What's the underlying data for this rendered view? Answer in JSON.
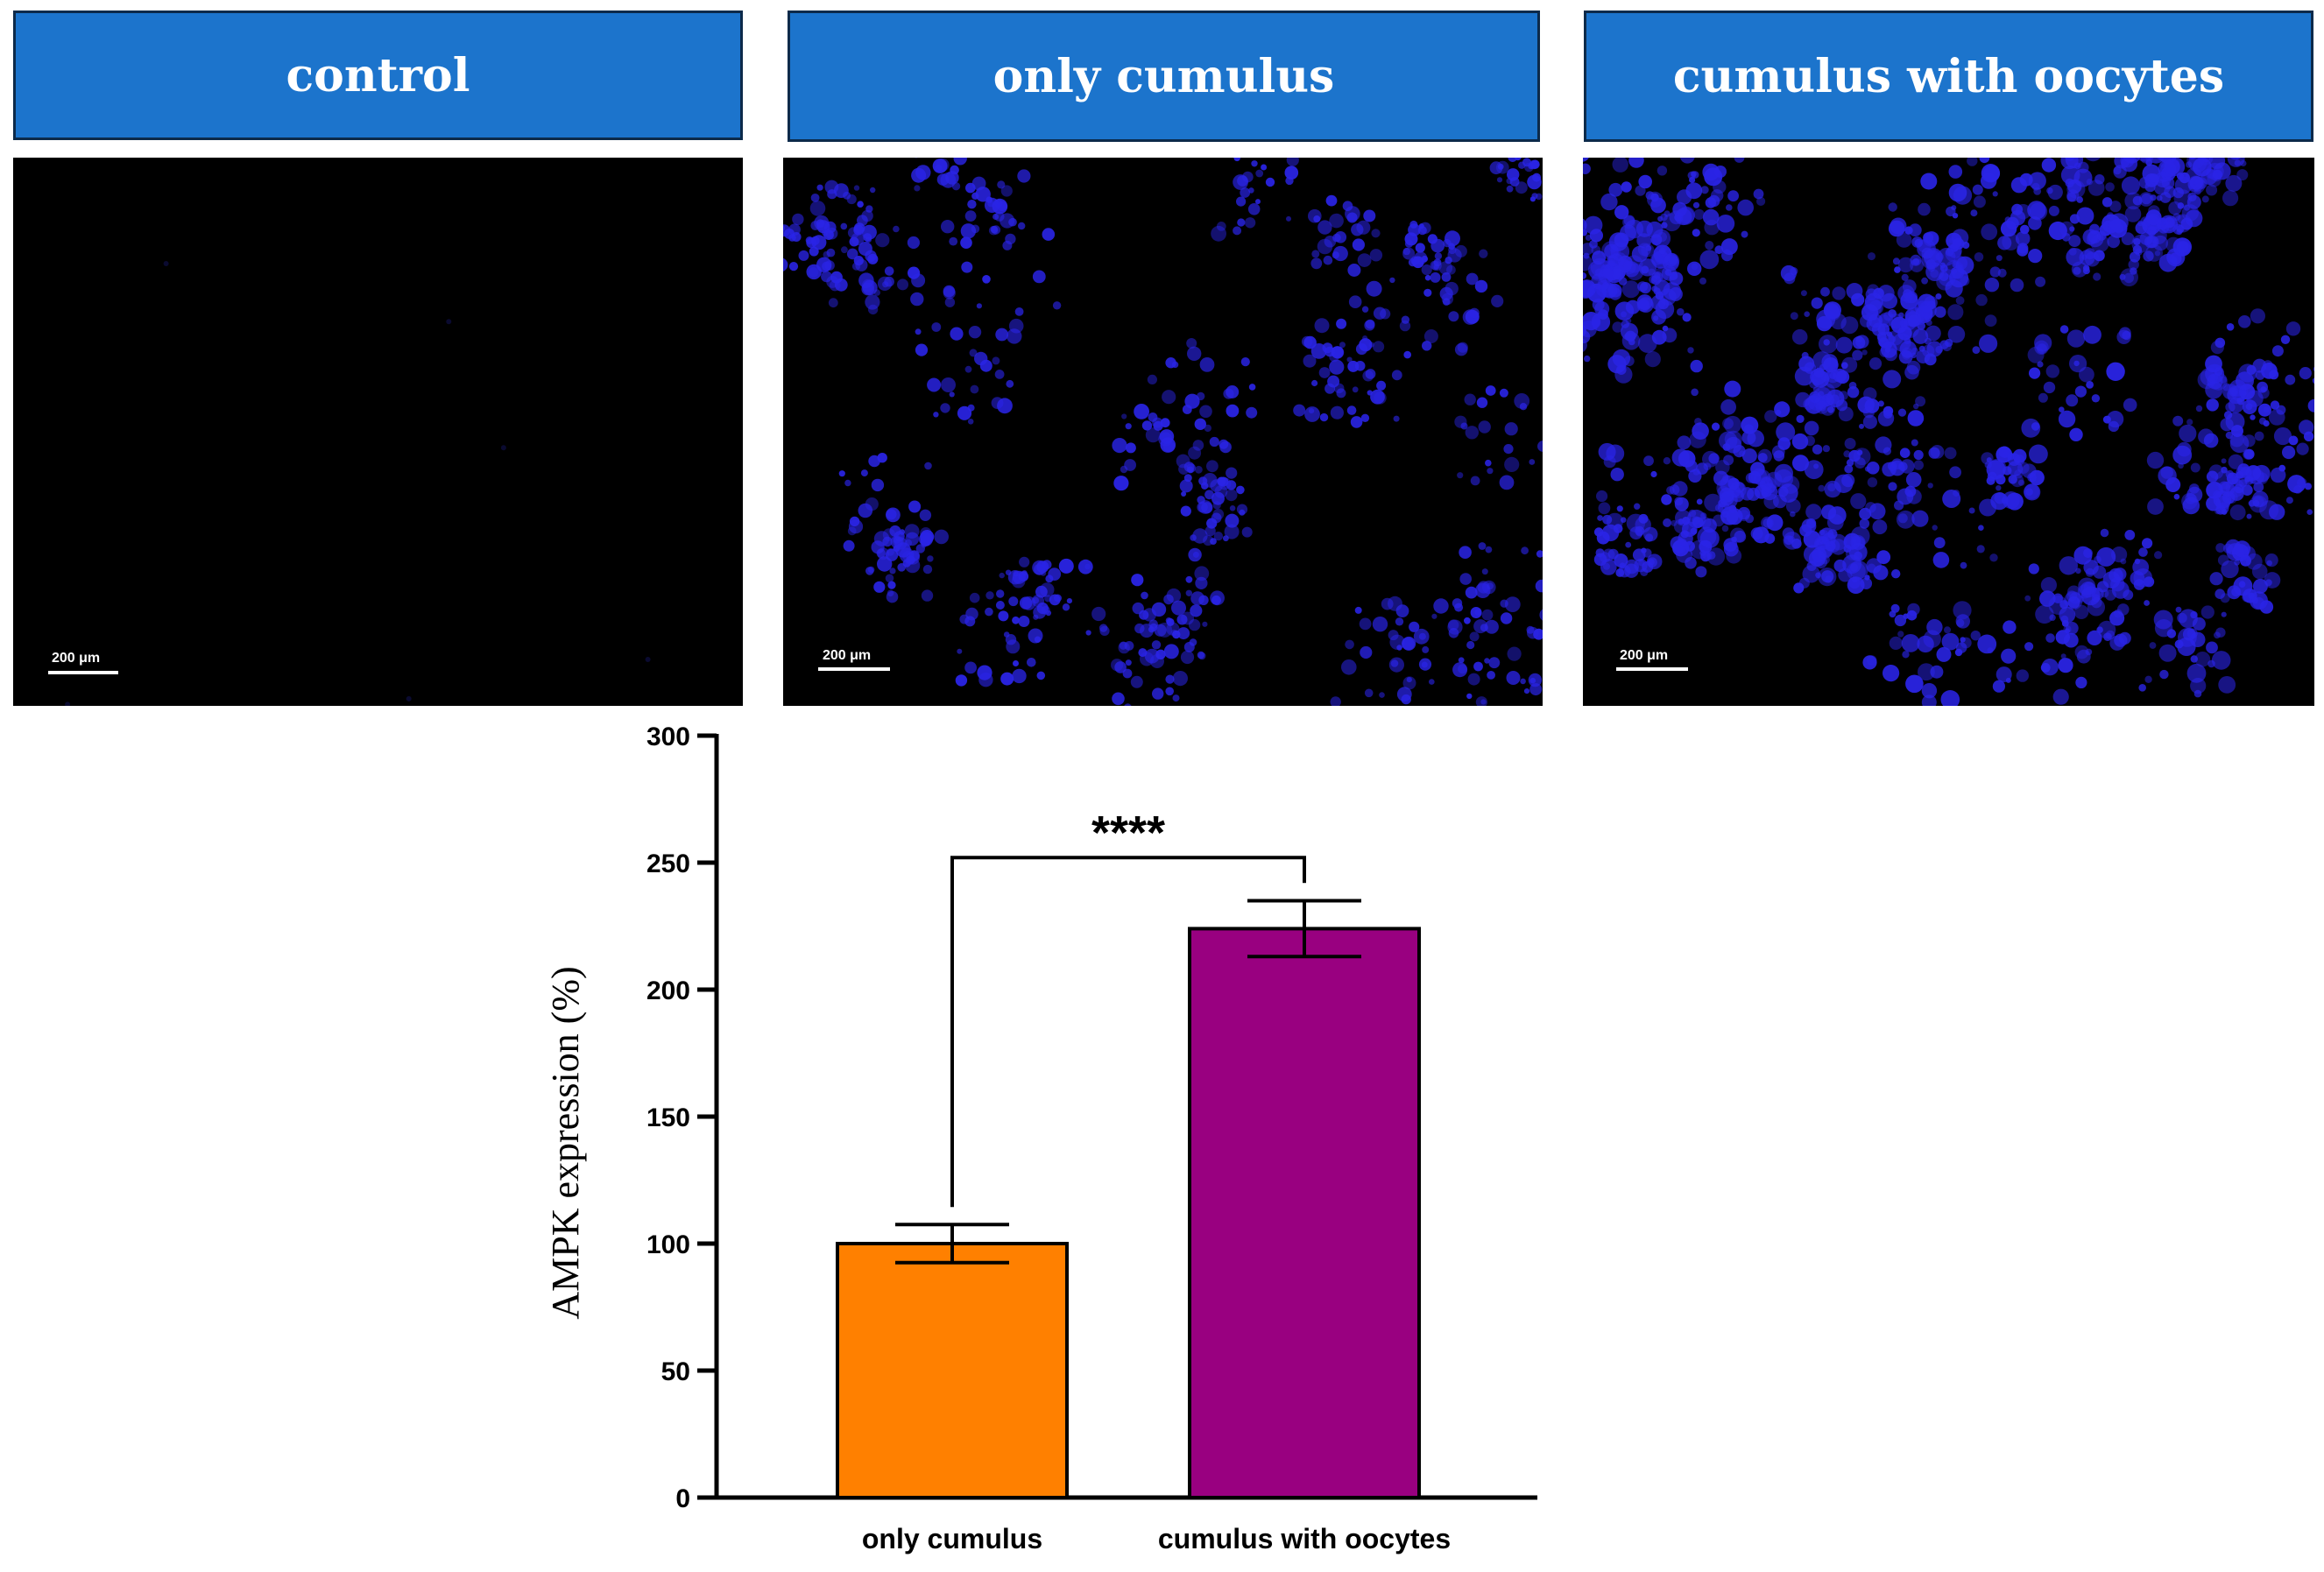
{
  "panels": [
    {
      "title": "control",
      "scale_bar": "200 μm",
      "density": 0
    },
    {
      "title": "only cumulus",
      "scale_bar": "200 μm",
      "density": 1
    },
    {
      "title": "cumulus with oocytes",
      "scale_bar": "200 μm",
      "density": 2
    }
  ],
  "colors": {
    "header_bg": "#1c74cc",
    "fluorescence": "#2a24e6",
    "bar_only_cumulus": "#ff8000",
    "bar_cumulus_with_oocytes": "#990080"
  },
  "chart_data": {
    "type": "bar",
    "categories": [
      "only cumulus",
      "cumulus with oocytes"
    ],
    "values": [
      100,
      224
    ],
    "errors": [
      7.5,
      11
    ],
    "ylabel": "AMPK expression (%)",
    "ylim": [
      0,
      300
    ],
    "yticks": [
      "0",
      "50",
      "100",
      "150",
      "200",
      "250",
      "300"
    ],
    "significance": "****",
    "grid": false
  }
}
